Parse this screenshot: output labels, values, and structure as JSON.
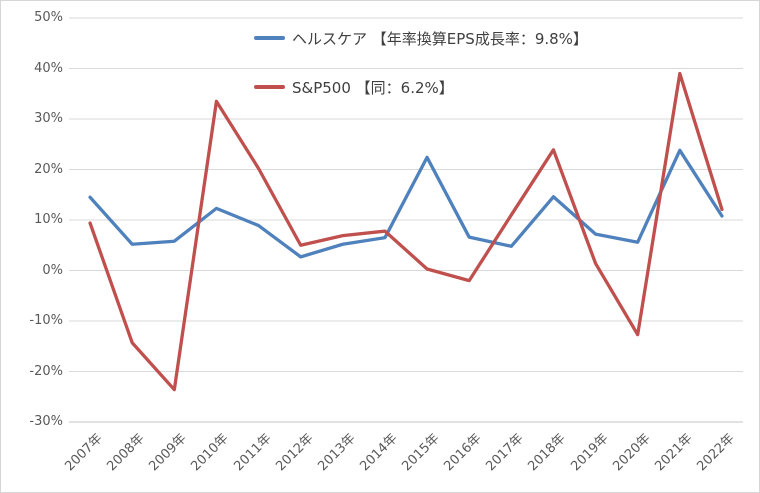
{
  "page": {
    "background": "#ffffff",
    "border_color": "#d6d6d6"
  },
  "chart_data": {
    "type": "line",
    "categories": [
      "2007年",
      "2008年",
      "2009年",
      "2010年",
      "2011年",
      "2012年",
      "2013年",
      "2014年",
      "2015年",
      "2016年",
      "2017年",
      "2018年",
      "2019年",
      "2020年",
      "2021年",
      "2022年"
    ],
    "series": [
      {
        "name": "ヘルスケア 【年率換算EPS成長率：9.8%】",
        "color": "#4F81BD",
        "values": [
          14.5,
          5.2,
          5.8,
          12.3,
          8.9,
          2.7,
          5.2,
          6.5,
          22.4,
          6.6,
          4.8,
          14.6,
          7.2,
          5.6,
          23.8,
          10.8
        ]
      },
      {
        "name": "S&P500 【同：6.2%】",
        "color": "#C0504D",
        "values": [
          9.4,
          -14.3,
          -23.6,
          33.5,
          20.2,
          5.0,
          6.9,
          7.8,
          0.3,
          -2.0,
          11.0,
          23.9,
          1.4,
          -12.7,
          39.0,
          12.1
        ]
      }
    ],
    "title": "",
    "xlabel": "",
    "ylabel": "",
    "ylim": [
      -30,
      50
    ],
    "ytick_step": 10,
    "ytick_labels": [
      "50%",
      "40%",
      "30%",
      "20%",
      "10%",
      "0%",
      "-10%",
      "-20%",
      "-30%"
    ],
    "grid": true,
    "gridline_color": "#d9d9d9",
    "axis_line_color": "#c3c3c3",
    "tick_label_color": "#595959",
    "legend_position": "top-center"
  }
}
